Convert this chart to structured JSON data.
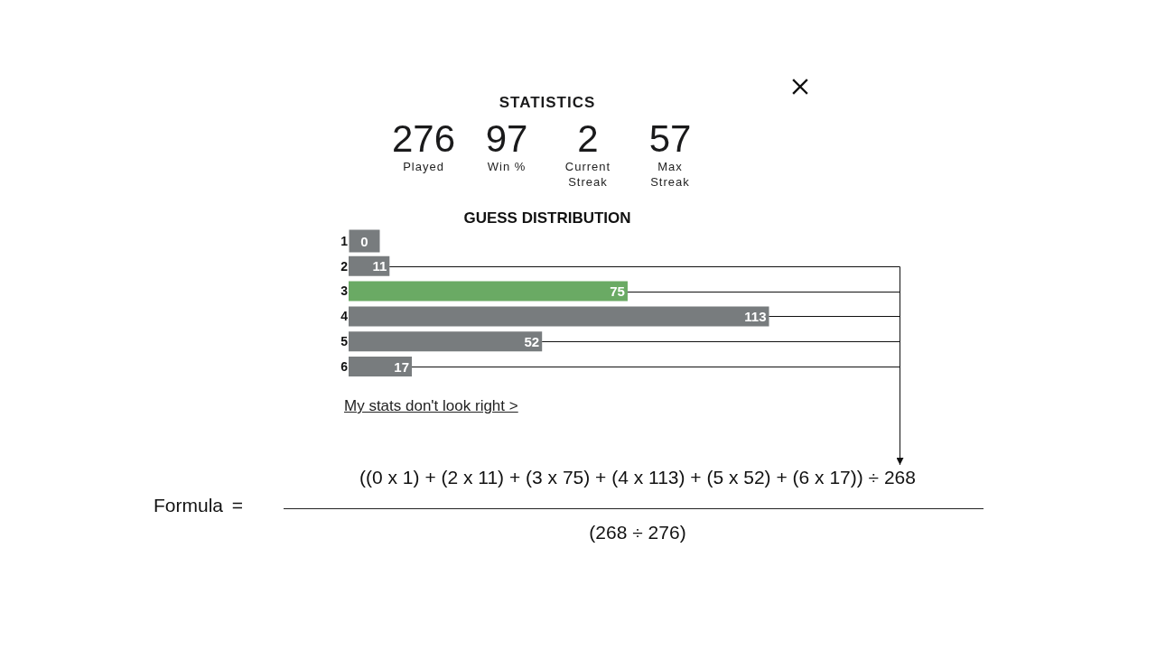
{
  "chart_data": [
    {
      "type": "other",
      "title": "STATISTICS",
      "categories": [
        "Played",
        "Win %",
        "Current Streak",
        "Max Streak"
      ],
      "values": [
        276,
        97,
        2,
        57
      ],
      "data_labels": true
    },
    {
      "type": "bar",
      "orientation": "horizontal",
      "title": "GUESS DISTRIBUTION",
      "categories": [
        "1",
        "2",
        "3",
        "4",
        "5",
        "6"
      ],
      "values": [
        0,
        11,
        75,
        113,
        52,
        17
      ],
      "colors": [
        "#787c7e",
        "#787c7e",
        "#6aaa64",
        "#787c7e",
        "#787c7e",
        "#787c7e"
      ],
      "data_labels": true,
      "annotations": [
        "My stats don't look right >",
        "Formula  =",
        "((0 x 1) + (2 x 11) + (3 x 75) + (4 x 113) + (5 x 52) + (6 x 17)) ÷ 268",
        "(268 ÷ 276)"
      ]
    }
  ]
}
